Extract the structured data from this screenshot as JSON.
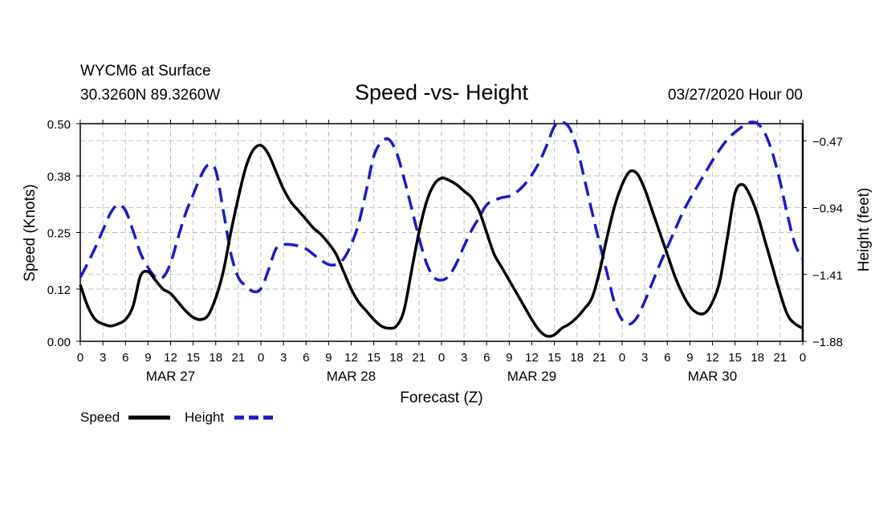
{
  "chart_data": {
    "type": "line",
    "title": "Speed -vs- Height",
    "station": "WYCM6 at Surface",
    "location": "30.3260N 89.3260W",
    "datetime": "03/27/2020 Hour 00",
    "xlabel": "Forecast (Z)",
    "ylabel": "Speed (Knots)",
    "y2label": "Height (feet)",
    "xlim": [
      0,
      96
    ],
    "ylim": [
      0,
      0.5
    ],
    "y2lim": [
      -1.88,
      -0.35
    ],
    "x_tick_values": [
      0,
      3,
      6,
      9,
      12,
      15,
      18,
      21,
      24,
      27,
      30,
      33,
      36,
      39,
      42,
      45,
      48,
      51,
      54,
      57,
      60,
      63,
      66,
      69,
      72,
      75,
      78,
      81,
      84,
      87,
      90,
      93,
      96
    ],
    "x_tick_labels": [
      "0",
      "3",
      "6",
      "9",
      "12",
      "15",
      "18",
      "21",
      "0",
      "3",
      "6",
      "9",
      "12",
      "15",
      "18",
      "21",
      "0",
      "3",
      "6",
      "9",
      "12",
      "15",
      "18",
      "21",
      "0",
      "3",
      "6",
      "9",
      "12",
      "15",
      "18",
      "21",
      "0"
    ],
    "day_labels": [
      {
        "label": "MAR 27",
        "x": 12
      },
      {
        "label": "MAR 28",
        "x": 36
      },
      {
        "label": "MAR 29",
        "x": 60
      },
      {
        "label": "MAR 30",
        "x": 84
      }
    ],
    "y_ticks": [
      0.0,
      0.12,
      0.25,
      0.38,
      0.5
    ],
    "y_tick_labels": [
      "0.00",
      "0.12",
      "0.25",
      "0.38",
      "0.50"
    ],
    "y2_ticks": [
      -1.88,
      -1.41,
      -0.94,
      -0.47
    ],
    "y2_tick_labels": [
      "−1.88",
      "−1.41",
      "−0.94",
      "−0.47"
    ],
    "grid": true,
    "legend_position": "bottom-left",
    "series": [
      {
        "name": "Speed",
        "axis": "left",
        "color": "#000000",
        "dash": "solid",
        "x": [
          0,
          1,
          2,
          3,
          4,
          5,
          6,
          7,
          8,
          9,
          10,
          11,
          12,
          13,
          14,
          15,
          16,
          17,
          18,
          19,
          20,
          21,
          22,
          23,
          24,
          25,
          26,
          27,
          28,
          29,
          30,
          31,
          32,
          33,
          34,
          35,
          36,
          37,
          38,
          39,
          40,
          41,
          42,
          43,
          44,
          45,
          46,
          47,
          48,
          49,
          50,
          51,
          52,
          53,
          54,
          55,
          56,
          57,
          58,
          59,
          60,
          61,
          62,
          63,
          64,
          65,
          66,
          67,
          68,
          69,
          70,
          71,
          72,
          73,
          74,
          75,
          76,
          77,
          78,
          79,
          80,
          81,
          82,
          83,
          84,
          85,
          86,
          87,
          88,
          89,
          90,
          91,
          92,
          93,
          94,
          95,
          96
        ],
        "values": [
          0.13,
          0.08,
          0.05,
          0.04,
          0.035,
          0.04,
          0.05,
          0.08,
          0.15,
          0.16,
          0.14,
          0.12,
          0.11,
          0.09,
          0.07,
          0.055,
          0.05,
          0.06,
          0.1,
          0.16,
          0.25,
          0.33,
          0.4,
          0.44,
          0.45,
          0.43,
          0.39,
          0.35,
          0.32,
          0.3,
          0.28,
          0.26,
          0.245,
          0.225,
          0.2,
          0.16,
          0.12,
          0.09,
          0.07,
          0.05,
          0.035,
          0.03,
          0.035,
          0.07,
          0.16,
          0.25,
          0.32,
          0.36,
          0.375,
          0.37,
          0.36,
          0.345,
          0.33,
          0.3,
          0.25,
          0.2,
          0.17,
          0.14,
          0.11,
          0.08,
          0.05,
          0.025,
          0.012,
          0.015,
          0.03,
          0.04,
          0.055,
          0.075,
          0.1,
          0.16,
          0.24,
          0.31,
          0.36,
          0.39,
          0.385,
          0.35,
          0.3,
          0.25,
          0.2,
          0.15,
          0.11,
          0.08,
          0.065,
          0.065,
          0.09,
          0.14,
          0.24,
          0.34,
          0.36,
          0.335,
          0.29,
          0.23,
          0.17,
          0.11,
          0.06,
          0.04,
          0.03
        ]
      },
      {
        "name": "Height",
        "axis": "right",
        "color": "#1a1acc",
        "dash": "dashed",
        "x": [
          0,
          1,
          2,
          3,
          4,
          5,
          6,
          7,
          8,
          9,
          10,
          11,
          12,
          13,
          14,
          15,
          16,
          17,
          18,
          19,
          20,
          21,
          22,
          23,
          24,
          25,
          26,
          27,
          28,
          29,
          30,
          31,
          32,
          33,
          34,
          35,
          36,
          37,
          38,
          39,
          40,
          41,
          42,
          43,
          44,
          45,
          46,
          47,
          48,
          49,
          50,
          51,
          52,
          53,
          54,
          55,
          56,
          57,
          58,
          59,
          60,
          61,
          62,
          63,
          64,
          65,
          66,
          67,
          68,
          69,
          70,
          71,
          72,
          73,
          74,
          75,
          76,
          77,
          78,
          79,
          80,
          81,
          82,
          83,
          84,
          85,
          86,
          87,
          88,
          89,
          90,
          91,
          92,
          93,
          94,
          95,
          96
        ],
        "values": [
          -1.43,
          -1.33,
          -1.22,
          -1.1,
          -0.98,
          -0.92,
          -0.96,
          -1.1,
          -1.26,
          -1.36,
          -1.43,
          -1.43,
          -1.33,
          -1.15,
          -0.98,
          -0.85,
          -0.72,
          -0.64,
          -0.68,
          -0.96,
          -1.26,
          -1.43,
          -1.49,
          -1.53,
          -1.51,
          -1.38,
          -1.23,
          -1.2,
          -1.2,
          -1.21,
          -1.23,
          -1.27,
          -1.31,
          -1.34,
          -1.34,
          -1.3,
          -1.2,
          -1.05,
          -0.82,
          -0.58,
          -0.48,
          -0.46,
          -0.55,
          -0.73,
          -0.94,
          -1.15,
          -1.33,
          -1.43,
          -1.45,
          -1.42,
          -1.33,
          -1.21,
          -1.1,
          -1.01,
          -0.92,
          -0.89,
          -0.87,
          -0.86,
          -0.83,
          -0.78,
          -0.71,
          -0.62,
          -0.5,
          -0.37,
          -0.34,
          -0.38,
          -0.52,
          -0.74,
          -0.97,
          -1.19,
          -1.4,
          -1.61,
          -1.73,
          -1.76,
          -1.71,
          -1.6,
          -1.47,
          -1.34,
          -1.22,
          -1.1,
          -0.98,
          -0.88,
          -0.79,
          -0.7,
          -0.61,
          -0.53,
          -0.46,
          -0.41,
          -0.37,
          -0.34,
          -0.35,
          -0.42,
          -0.56,
          -0.76,
          -1.0,
          -1.2,
          -1.3
        ]
      }
    ]
  }
}
